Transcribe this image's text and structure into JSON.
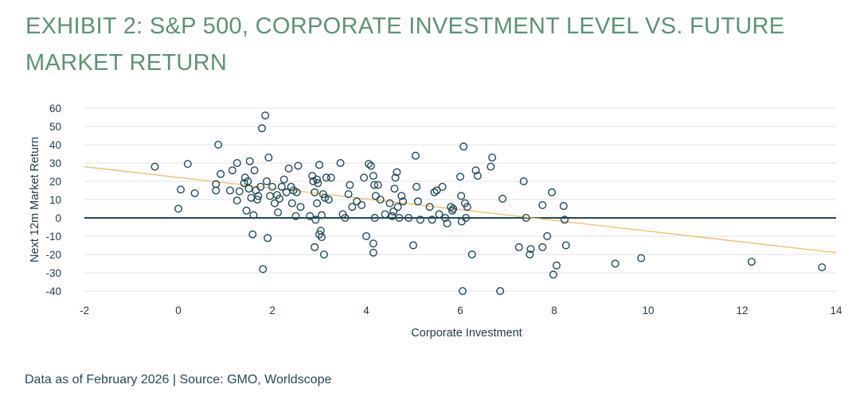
{
  "title": "EXHIBIT 2: S&P 500, CORPORATE INVESTMENT LEVEL VS. FUTURE MARKET RETURN",
  "footer": "Data as of February 2026 | Source: GMO, Worldscope",
  "colors": {
    "title": "#5a9475",
    "point": "#1f4a5a",
    "trend": "#f2c069",
    "grid": "#dde3e6",
    "zero": "#1f4a5a"
  },
  "chart_data": {
    "type": "scatter",
    "title": "EXHIBIT 2: S&P 500, CORPORATE INVESTMENT LEVEL VS. FUTURE MARKET RETURN",
    "xlabel": "Corporate Investment",
    "ylabel": "Next 12m Market Return",
    "xlim": [
      -2,
      14
    ],
    "ylim": [
      -40,
      60
    ],
    "xticks": [
      "-2",
      "0",
      "2",
      "4",
      "6",
      "8",
      "10",
      "12",
      "14"
    ],
    "yticks": [
      "60",
      "50",
      "40",
      "30",
      "20",
      "10",
      "0",
      "-10",
      "-20",
      "-30",
      "-40"
    ],
    "grid": "horizontal",
    "trendline": {
      "x": [
        -2,
        14
      ],
      "y": [
        28,
        -19
      ]
    },
    "points": [
      [
        -0.5,
        28
      ],
      [
        0,
        5
      ],
      [
        0.05,
        15.5
      ],
      [
        0.2,
        29.5
      ],
      [
        0.35,
        13.5
      ],
      [
        0.8,
        18.5
      ],
      [
        0.8,
        15
      ],
      [
        0.85,
        40
      ],
      [
        0.9,
        24
      ],
      [
        1.1,
        15
      ],
      [
        1.15,
        26
      ],
      [
        1.25,
        9.5
      ],
      [
        1.25,
        30
      ],
      [
        1.3,
        14.5
      ],
      [
        1.4,
        19
      ],
      [
        1.42,
        22
      ],
      [
        1.45,
        4
      ],
      [
        1.48,
        20
      ],
      [
        1.5,
        16
      ],
      [
        1.52,
        31
      ],
      [
        1.55,
        11
      ],
      [
        1.58,
        -9
      ],
      [
        1.6,
        1.5
      ],
      [
        1.62,
        26
      ],
      [
        1.65,
        15
      ],
      [
        1.68,
        10
      ],
      [
        1.7,
        12
      ],
      [
        1.75,
        17
      ],
      [
        1.78,
        49
      ],
      [
        1.8,
        -28
      ],
      [
        1.85,
        56
      ],
      [
        1.88,
        20
      ],
      [
        1.9,
        -11
      ],
      [
        1.92,
        33
      ],
      [
        1.95,
        12
      ],
      [
        2.0,
        17
      ],
      [
        2.05,
        8
      ],
      [
        2.1,
        12.5
      ],
      [
        2.12,
        3
      ],
      [
        2.15,
        10.5
      ],
      [
        2.2,
        17
      ],
      [
        2.25,
        21
      ],
      [
        2.3,
        14
      ],
      [
        2.35,
        27
      ],
      [
        2.4,
        17
      ],
      [
        2.42,
        8
      ],
      [
        2.45,
        15
      ],
      [
        2.5,
        1
      ],
      [
        2.52,
        14
      ],
      [
        2.55,
        28.5
      ],
      [
        2.6,
        6
      ],
      [
        2.8,
        1
      ],
      [
        2.85,
        23
      ],
      [
        2.87,
        20
      ],
      [
        2.9,
        -16
      ],
      [
        2.9,
        14
      ],
      [
        2.92,
        -1
      ],
      [
        2.95,
        21
      ],
      [
        2.95,
        8
      ],
      [
        2.97,
        19
      ],
      [
        3.0,
        29
      ],
      [
        3.0,
        -9
      ],
      [
        3.03,
        -7
      ],
      [
        3.05,
        1.5
      ],
      [
        3.05,
        -10.5
      ],
      [
        3.08,
        13
      ],
      [
        3.1,
        -20
      ],
      [
        3.12,
        11
      ],
      [
        3.15,
        22
      ],
      [
        3.2,
        10
      ],
      [
        3.25,
        22
      ],
      [
        3.45,
        30
      ],
      [
        3.5,
        2
      ],
      [
        3.55,
        0
      ],
      [
        3.62,
        13
      ],
      [
        3.65,
        18
      ],
      [
        3.7,
        6
      ],
      [
        3.8,
        9
      ],
      [
        3.9,
        7
      ],
      [
        3.95,
        22
      ],
      [
        4.0,
        -10
      ],
      [
        4.05,
        29.5
      ],
      [
        4.1,
        28.5
      ],
      [
        4.15,
        -19
      ],
      [
        4.15,
        -14
      ],
      [
        4.15,
        23
      ],
      [
        4.17,
        18
      ],
      [
        4.18,
        0
      ],
      [
        4.2,
        12
      ],
      [
        4.25,
        18
      ],
      [
        4.3,
        10
      ],
      [
        4.4,
        2
      ],
      [
        4.5,
        8
      ],
      [
        4.55,
        1
      ],
      [
        4.58,
        3.5
      ],
      [
        4.6,
        16
      ],
      [
        4.62,
        22
      ],
      [
        4.65,
        25
      ],
      [
        4.67,
        6
      ],
      [
        4.7,
        0
      ],
      [
        4.75,
        12
      ],
      [
        4.78,
        9
      ],
      [
        4.9,
        0
      ],
      [
        5.0,
        -15
      ],
      [
        5.05,
        34
      ],
      [
        5.07,
        17
      ],
      [
        5.1,
        9
      ],
      [
        5.15,
        -1
      ],
      [
        5.35,
        6
      ],
      [
        5.4,
        -1
      ],
      [
        5.45,
        14
      ],
      [
        5.5,
        15
      ],
      [
        5.55,
        2
      ],
      [
        5.62,
        17
      ],
      [
        5.68,
        0
      ],
      [
        5.72,
        -3
      ],
      [
        5.8,
        6
      ],
      [
        5.83,
        4
      ],
      [
        5.85,
        5
      ],
      [
        6.0,
        22.5
      ],
      [
        6.02,
        12
      ],
      [
        6.03,
        -2
      ],
      [
        6.05,
        -40
      ],
      [
        6.07,
        39
      ],
      [
        6.1,
        8
      ],
      [
        6.12,
        0
      ],
      [
        6.15,
        6
      ],
      [
        6.25,
        -20
      ],
      [
        6.33,
        26
      ],
      [
        6.37,
        23
      ],
      [
        6.65,
        28
      ],
      [
        6.68,
        33
      ],
      [
        6.85,
        -40
      ],
      [
        6.9,
        10.5
      ],
      [
        7.25,
        -16
      ],
      [
        7.35,
        20
      ],
      [
        7.4,
        0
      ],
      [
        7.48,
        -20
      ],
      [
        7.5,
        -17
      ],
      [
        7.75,
        -16
      ],
      [
        7.75,
        7
      ],
      [
        7.85,
        -10
      ],
      [
        7.95,
        14
      ],
      [
        7.98,
        -31
      ],
      [
        8.05,
        -26
      ],
      [
        8.2,
        6.5
      ],
      [
        8.22,
        -1
      ],
      [
        8.25,
        -15
      ],
      [
        9.3,
        -25
      ],
      [
        9.85,
        -22
      ],
      [
        12.2,
        -24
      ],
      [
        13.7,
        -27
      ]
    ]
  }
}
